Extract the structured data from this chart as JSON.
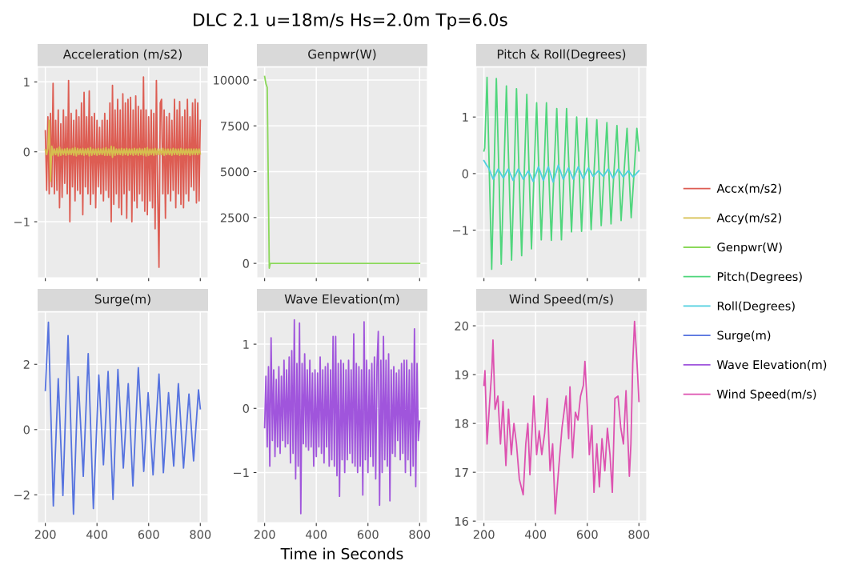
{
  "chart_data": [
    {
      "type": "line",
      "title": "Acceleration (m/s2)",
      "annotations": [
        "DLC 2.1 u=18m/s Hs=2.0m Tp=6.0s"
      ],
      "legend": "right",
      "grid": true,
      "tick_labels": "y",
      "xlim": [
        170,
        830
      ],
      "xticks": [
        200,
        400,
        600,
        800
      ],
      "ylim": [
        -1.8,
        1.21
      ],
      "yticks": [
        -1,
        0,
        1
      ],
      "x": [
        200,
        205,
        210,
        215,
        220,
        225,
        230,
        235,
        240,
        245,
        250,
        255,
        260,
        265,
        270,
        275,
        280,
        285,
        290,
        295,
        300,
        305,
        310,
        315,
        320,
        325,
        330,
        335,
        340,
        345,
        350,
        355,
        360,
        365,
        370,
        375,
        380,
        385,
        390,
        395,
        400,
        405,
        410,
        415,
        420,
        425,
        430,
        435,
        440,
        445,
        450,
        455,
        460,
        465,
        470,
        475,
        480,
        485,
        490,
        495,
        500,
        505,
        510,
        515,
        520,
        525,
        530,
        535,
        540,
        545,
        550,
        555,
        560,
        565,
        570,
        575,
        580,
        585,
        590,
        595,
        600,
        605,
        610,
        615,
        620,
        625,
        630,
        635,
        640,
        645,
        650,
        655,
        660,
        665,
        670,
        675,
        680,
        685,
        690,
        695,
        700,
        705,
        710,
        715,
        720,
        725,
        730,
        735,
        740,
        745,
        750,
        755,
        760,
        765,
        770,
        775,
        780,
        785,
        790,
        795,
        800
      ],
      "series": [
        {
          "name": "Accx(m/s2)",
          "color": "#dd5d53",
          "values": [
            0.3,
            -0.55,
            0.5,
            -0.6,
            0.55,
            -0.5,
            0.98,
            -0.6,
            0.45,
            -0.55,
            0.6,
            -0.8,
            0.4,
            -0.65,
            0.6,
            -0.45,
            0.5,
            -0.6,
            1.02,
            -1.0,
            0.55,
            -0.5,
            0.45,
            -0.7,
            0.6,
            -0.55,
            0.5,
            -0.6,
            0.7,
            -0.9,
            0.85,
            -0.5,
            0.5,
            -0.6,
            0.87,
            -0.75,
            0.5,
            -0.6,
            0.55,
            -0.8,
            0.45,
            -0.5,
            0.35,
            -0.6,
            0.45,
            -0.7,
            0.55,
            -0.55,
            0.45,
            -0.65,
            0.7,
            -1.0,
            0.95,
            -0.75,
            0.6,
            -0.6,
            0.75,
            -0.8,
            0.6,
            -0.9,
            0.83,
            -0.6,
            0.7,
            -0.95,
            0.75,
            -0.55,
            0.78,
            -1.0,
            0.6,
            -0.7,
            0.8,
            -0.8,
            0.65,
            -0.6,
            0.6,
            -0.7,
            1.07,
            -0.85,
            0.6,
            -0.9,
            0.5,
            -0.7,
            0.6,
            -0.8,
            0.55,
            -1.1,
            1.02,
            -0.6,
            -1.65,
            0.7,
            0.75,
            -0.6,
            0.6,
            -0.95,
            0.5,
            -0.6,
            0.55,
            -0.7,
            0.45,
            -0.55,
            0.75,
            -0.8,
            0.6,
            -0.6,
            0.72,
            -0.75,
            0.5,
            -0.8,
            0.6,
            -0.6,
            0.75,
            -0.7,
            0.5,
            -0.5,
            0.7,
            -0.55,
            0.75,
            -0.73,
            0.7,
            -0.7,
            0.45
          ]
        },
        {
          "name": "Accy(m/s2)",
          "color": "#d6bf4f",
          "values": [
            0.03,
            -0.04,
            0.05,
            0.45,
            -0.42,
            0.08,
            -0.05,
            0.04,
            -0.04,
            0.05,
            -0.06,
            0.07,
            -0.05,
            0.04,
            -0.04,
            0.04,
            -0.05,
            0.05,
            -0.04,
            0.04,
            -0.04,
            0.05,
            -0.05,
            0.06,
            -0.06,
            0.05,
            -0.04,
            0.04,
            -0.04,
            0.05,
            -0.05,
            0.04,
            -0.04,
            0.05,
            -0.06,
            0.06,
            -0.05,
            0.04,
            -0.04,
            0.04,
            -0.05,
            0.05,
            -0.04,
            0.04,
            -0.04,
            0.05,
            -0.05,
            0.06,
            -0.05,
            0.04,
            -0.05,
            0.08,
            -0.08,
            0.07,
            -0.05,
            0.04,
            -0.04,
            0.04,
            -0.04,
            0.05,
            -0.05,
            0.04,
            -0.04,
            0.05,
            -0.05,
            0.04,
            -0.04,
            0.04,
            -0.05,
            0.05,
            -0.04,
            0.04,
            -0.05,
            0.05,
            -0.04,
            0.04,
            -0.05,
            0.05,
            -0.06,
            0.06,
            -0.05,
            0.04,
            -0.04,
            0.04,
            -0.05,
            0.05,
            -0.04,
            0.04,
            -0.04,
            0.04,
            -0.04,
            0.05,
            -0.05,
            0.04,
            -0.04,
            0.04,
            -0.04,
            0.04,
            -0.05,
            0.05,
            -0.04,
            0.04,
            -0.04,
            0.04,
            -0.05,
            0.05,
            -0.04,
            0.04,
            -0.04,
            0.04,
            -0.04,
            0.04,
            -0.05,
            0.04,
            -0.04,
            0.04,
            -0.04,
            0.04,
            -0.04,
            0.04,
            -0.03
          ]
        }
      ]
    },
    {
      "type": "line",
      "title": "Genpwr(W)",
      "legend": "right",
      "grid": true,
      "tick_labels": "y",
      "xlim": [
        170,
        830
      ],
      "xticks": [
        200,
        400,
        600,
        800
      ],
      "ylim": [
        -780,
        10700
      ],
      "yticks": [
        0,
        2500,
        5000,
        7500,
        10000
      ],
      "series": [
        {
          "name": "Genpwr(W)",
          "color": "#8bd85a",
          "x": [
            200,
            205,
            210,
            218,
            222,
            800
          ],
          "values": [
            10200,
            9800,
            9600,
            -260,
            0,
            0
          ]
        }
      ]
    },
    {
      "type": "line",
      "title": "Pitch & Roll(Degrees)",
      "legend": "right",
      "grid": true,
      "tick_labels": "y",
      "xlim": [
        170,
        830
      ],
      "xticks": [
        200,
        400,
        600,
        800
      ],
      "ylim": [
        -1.84,
        1.88
      ],
      "yticks": [
        -1,
        0,
        1
      ],
      "series": [
        {
          "name": "Pitch(Degrees)",
          "color": "#4fd67c",
          "x": [
            200,
            203,
            212,
            221,
            230,
            239,
            248,
            258,
            267,
            277,
            287,
            297,
            307,
            317,
            326,
            336,
            346,
            356,
            366,
            375,
            384,
            394,
            404,
            413,
            422,
            432,
            442,
            451,
            461,
            471,
            482,
            491,
            500,
            510,
            520,
            530,
            539,
            549,
            559,
            569,
            578,
            588,
            598,
            607,
            615,
            626,
            637,
            646,
            654,
            665,
            676,
            684,
            692,
            703,
            715,
            723,
            731,
            742,
            754,
            762,
            770,
            781,
            792,
            800
          ],
          "values": [
            0.4,
            0.45,
            1.7,
            0,
            -1.69,
            0,
            1.68,
            0,
            -1.6,
            0,
            1.55,
            0,
            -1.53,
            0,
            1.5,
            0,
            -1.45,
            0,
            1.4,
            0,
            -1.33,
            0,
            1.25,
            0,
            -1.17,
            0,
            1.25,
            0,
            -1.18,
            0,
            1.15,
            0,
            -1.17,
            0,
            1.15,
            0,
            -1.03,
            0,
            1.0,
            0,
            -1.02,
            0,
            0.98,
            0,
            -0.99,
            0,
            0.95,
            0,
            -0.92,
            0,
            0.9,
            0,
            -0.89,
            0,
            0.85,
            0,
            -0.83,
            0,
            0.8,
            0,
            -0.78,
            0,
            0.8,
            0.4
          ]
        },
        {
          "name": "Roll(Degrees)",
          "color": "#4fcfdf",
          "x": [
            200,
            210,
            218,
            236,
            255,
            275,
            294,
            313,
            333,
            352,
            372,
            391,
            411,
            430,
            449,
            468,
            488,
            507,
            527,
            546,
            565,
            584,
            604,
            623,
            643,
            662,
            681,
            700,
            720,
            739,
            759,
            778,
            800
          ],
          "values": [
            0.23,
            0.15,
            0.1,
            -0.1,
            0.08,
            -0.08,
            0.08,
            -0.12,
            0.08,
            -0.1,
            0.05,
            -0.14,
            0.12,
            -0.12,
            0.12,
            -0.15,
            0.15,
            -0.1,
            0.1,
            -0.1,
            0.12,
            -0.09,
            0.1,
            -0.05,
            0.05,
            -0.05,
            0.08,
            -0.08,
            0.08,
            -0.06,
            0.05,
            -0.06,
            0.05
          ]
        }
      ]
    },
    {
      "type": "line",
      "title": "Surge(m)",
      "legend": "right",
      "grid": true,
      "xlim": [
        170,
        830
      ],
      "xticks": [
        200,
        400,
        600,
        800
      ],
      "ylim": [
        -2.85,
        3.6
      ],
      "yticks": [
        -2,
        0,
        2
      ],
      "series": [
        {
          "name": "Surge(m)",
          "color": "#5673df",
          "x": [
            200,
            212,
            231,
            250,
            268,
            288,
            309,
            327,
            347,
            366,
            386,
            407,
            425,
            443,
            462,
            481,
            502,
            521,
            539,
            560,
            581,
            598,
            617,
            640,
            657,
            677,
            697,
            715,
            735,
            756,
            774,
            793,
            800
          ],
          "values": [
            1.2,
            3.29,
            -2.34,
            1.56,
            -2.02,
            2.88,
            -2.59,
            1.62,
            -1.43,
            2.33,
            -2.42,
            1.67,
            -1.08,
            1.78,
            -2.14,
            1.84,
            -1.18,
            1.41,
            -1.73,
            1.9,
            -1.28,
            1.13,
            -1.39,
            1.7,
            -1.32,
            1.13,
            -1.12,
            1.41,
            -1.18,
            1.09,
            -0.96,
            1.22,
            0.64
          ]
        }
      ]
    },
    {
      "type": "line",
      "title": "Wave Elevation(m)",
      "xlabel": "Time in Seconds",
      "legend": "right",
      "grid": true,
      "xlim": [
        170,
        830
      ],
      "xticks": [
        200,
        400,
        600,
        800
      ],
      "ylim": [
        -1.78,
        1.5
      ],
      "yticks": [
        -1,
        0,
        1
      ],
      "x": [
        200,
        205,
        210,
        215,
        220,
        225,
        230,
        235,
        240,
        245,
        250,
        255,
        260,
        265,
        270,
        275,
        280,
        285,
        290,
        295,
        300,
        305,
        310,
        315,
        320,
        325,
        330,
        335,
        340,
        345,
        350,
        355,
        360,
        365,
        370,
        375,
        380,
        385,
        390,
        395,
        400,
        405,
        410,
        415,
        420,
        425,
        430,
        435,
        440,
        445,
        450,
        455,
        460,
        465,
        470,
        475,
        480,
        485,
        490,
        495,
        500,
        505,
        510,
        515,
        520,
        525,
        530,
        535,
        540,
        545,
        550,
        555,
        560,
        565,
        570,
        575,
        580,
        585,
        590,
        595,
        600,
        605,
        610,
        615,
        620,
        625,
        630,
        635,
        640,
        645,
        650,
        655,
        660,
        665,
        670,
        675,
        680,
        685,
        690,
        695,
        700,
        705,
        710,
        715,
        720,
        725,
        730,
        735,
        740,
        745,
        750,
        755,
        760,
        765,
        770,
        775,
        780,
        785,
        790,
        795,
        800
      ],
      "series": [
        {
          "name": "Wave Elevation(m)",
          "color": "#a055dc",
          "values": [
            -0.3,
            0.5,
            -0.6,
            0.65,
            -0.9,
            1.1,
            -0.5,
            0.6,
            -0.75,
            0.45,
            -0.6,
            0.65,
            -0.7,
            0.5,
            -0.5,
            0.75,
            -0.6,
            0.6,
            -0.55,
            0.8,
            -0.85,
            0.9,
            -0.7,
            1.38,
            -1.1,
            0.7,
            -0.9,
            1.33,
            -1.64,
            0.7,
            -0.55,
            0.85,
            -0.6,
            0.6,
            -0.65,
            0.75,
            -0.6,
            0.55,
            -0.9,
            0.6,
            -0.75,
            0.55,
            -0.6,
            0.8,
            -0.7,
            0.6,
            -0.85,
            0.65,
            -0.6,
            0.7,
            -0.9,
            0.6,
            -0.8,
            1.12,
            -0.9,
            1.12,
            -1.05,
            0.7,
            -1.37,
            0.75,
            -0.8,
            0.7,
            -1.0,
            0.6,
            -0.8,
            0.75,
            -0.7,
            0.6,
            -0.85,
            1.16,
            -0.9,
            0.7,
            -1.0,
            0.65,
            -0.9,
            0.6,
            -1.35,
            1.35,
            -0.8,
            0.75,
            -1.0,
            0.6,
            -0.75,
            0.7,
            -0.9,
            0.8,
            -1.1,
            0.65,
            1.2,
            -1.51,
            0.75,
            -1.0,
            1.12,
            -0.8,
            0.75,
            -0.9,
            0.85,
            -1.44,
            0.6,
            -0.7,
            0.65,
            -0.75,
            0.55,
            -0.5,
            0.6,
            -0.8,
            0.7,
            -0.7,
            0.75,
            -1.0,
            0.75,
            -0.8,
            0.6,
            -1.05,
            0.7,
            -0.9,
            1.24,
            -1.22,
            0.7,
            -0.5,
            -0.2
          ]
        }
      ]
    },
    {
      "type": "line",
      "title": "Wind Speed(m/s)",
      "legend": "right",
      "grid": true,
      "xlim": [
        170,
        830
      ],
      "xticks": [
        200,
        400,
        600,
        800
      ],
      "ylim": [
        15.97,
        20.28
      ],
      "yticks": [
        16,
        17,
        18,
        19,
        20
      ],
      "series": [
        {
          "name": "Wind Speed(m/s)",
          "color": "#dd52b0",
          "x": [
            200,
            204,
            212,
            221,
            231,
            235,
            243,
            254,
            264,
            274,
            285,
            295,
            306,
            316,
            326,
            337,
            352,
            362,
            370,
            378,
            393,
            404,
            414,
            424,
            435,
            445,
            456,
            466,
            476,
            487,
            502,
            518,
            528,
            533,
            543,
            554,
            564,
            574,
            585,
            591,
            600,
            608,
            618,
            626,
            637,
            647,
            657,
            668,
            678,
            688,
            697,
            707,
            719,
            730,
            740,
            750,
            763,
            769,
            776,
            783,
            790,
            795,
            800
          ],
          "values": [
            18.78,
            19.08,
            17.58,
            18.34,
            19.14,
            19.71,
            18.29,
            18.56,
            17.58,
            18.45,
            17.14,
            18.29,
            17.36,
            18.0,
            17.58,
            16.86,
            16.54,
            17.58,
            18.0,
            16.95,
            18.56,
            17.36,
            17.85,
            17.36,
            17.8,
            18.51,
            17.03,
            17.58,
            16.15,
            16.92,
            17.9,
            18.56,
            17.69,
            18.75,
            17.3,
            18.23,
            18.07,
            18.56,
            18.78,
            19.27,
            18.34,
            17.36,
            17.96,
            16.59,
            17.58,
            16.7,
            17.69,
            17.03,
            17.9,
            17.36,
            16.59,
            18.51,
            18.56,
            17.9,
            17.58,
            18.67,
            16.92,
            17.58,
            19.22,
            20.09,
            19.49,
            19.0,
            18.45
          ]
        }
      ]
    }
  ]
}
